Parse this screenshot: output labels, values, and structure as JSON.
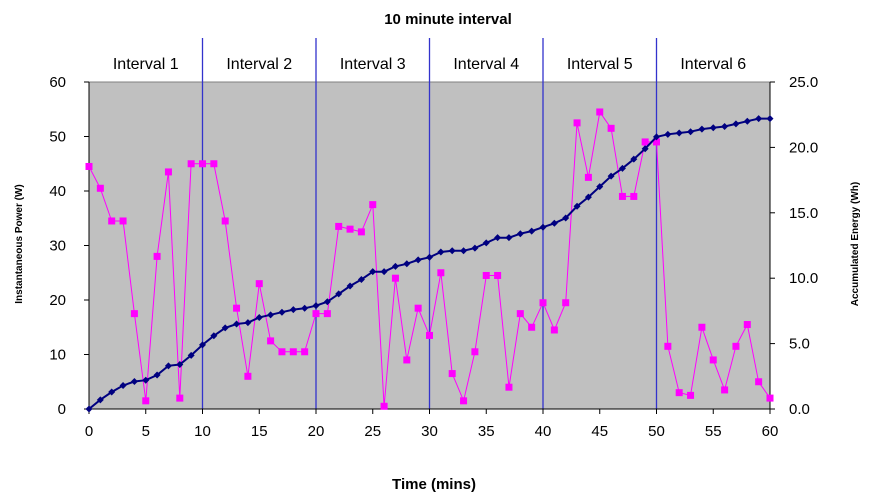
{
  "chart_data": {
    "type": "line",
    "title": "10 minute interval",
    "xlabel": "Time (mins)",
    "ylabel_left": "Instantaneous Power (W)",
    "ylabel_right": "Accumulated Energy (Wh)",
    "xlim": [
      0,
      60
    ],
    "ylim_left": [
      0,
      60
    ],
    "ylim_right": [
      0,
      25
    ],
    "x_ticks": [
      "0",
      "5",
      "10",
      "15",
      "20",
      "25",
      "30",
      "35",
      "40",
      "45",
      "50",
      "55",
      "60"
    ],
    "y_left_ticks": [
      "0",
      "10",
      "20",
      "30",
      "40",
      "50",
      "60"
    ],
    "y_right_ticks": [
      "0.0",
      "5.0",
      "10.0",
      "15.0",
      "20.0",
      "25.0"
    ],
    "grid": false,
    "plot_background": "#c0c0c0",
    "interval_lines": [
      10,
      20,
      30,
      40,
      50
    ],
    "interval_labels": [
      "Interval 1",
      "Interval 2",
      "Interval 3",
      "Interval 4",
      "Interval 5",
      "Interval 6"
    ],
    "series": [
      {
        "axis": "left",
        "color": "#ff00ff",
        "marker": "square",
        "x": [
          0,
          1,
          2,
          3,
          4,
          5,
          6,
          7,
          8,
          9,
          10,
          11,
          12,
          13,
          14,
          15,
          16,
          17,
          18,
          19,
          20,
          21,
          22,
          23,
          24,
          25,
          26,
          27,
          28,
          29,
          30,
          31,
          32,
          33,
          34,
          35,
          36,
          37,
          38,
          39,
          40,
          41,
          42,
          43,
          44,
          45,
          46,
          47,
          48,
          49,
          50,
          51,
          52,
          53,
          54,
          55,
          56,
          57,
          58,
          59,
          60
        ],
        "values": [
          44.5,
          40.5,
          34.5,
          34.5,
          17.5,
          1.5,
          28,
          43.5,
          2,
          45,
          45,
          45,
          34.5,
          18.5,
          6,
          23,
          12.5,
          10.5,
          10.5,
          10.5,
          17.5,
          17.5,
          33.5,
          33,
          32.5,
          37.5,
          0.5,
          24,
          9,
          18.5,
          13.5,
          25,
          6.5,
          1.5,
          10.5,
          24.5,
          24.5,
          4,
          17.5,
          15,
          19.5,
          14.5,
          19.5,
          52.5,
          42.5,
          54.5,
          51.5,
          39,
          39,
          49,
          49,
          11.5,
          3,
          2.5,
          15,
          9,
          3.5,
          11.5,
          15.5,
          5,
          2
        ]
      },
      {
        "axis": "right",
        "color": "#000080",
        "marker": "diamond",
        "x": [
          0,
          1,
          2,
          3,
          4,
          5,
          6,
          7,
          8,
          9,
          10,
          11,
          12,
          13,
          14,
          15,
          16,
          17,
          18,
          19,
          20,
          21,
          22,
          23,
          24,
          25,
          26,
          27,
          28,
          29,
          30,
          31,
          32,
          33,
          34,
          35,
          36,
          37,
          38,
          39,
          40,
          41,
          42,
          43,
          44,
          45,
          46,
          47,
          48,
          49,
          50,
          51,
          52,
          53,
          54,
          55,
          56,
          57,
          58,
          59,
          60
        ],
        "values": [
          0.0,
          0.7,
          1.3,
          1.8,
          2.1,
          2.2,
          2.6,
          3.3,
          3.4,
          4.1,
          4.9,
          5.6,
          6.2,
          6.5,
          6.6,
          7.0,
          7.2,
          7.4,
          7.6,
          7.7,
          7.9,
          8.2,
          8.8,
          9.4,
          9.9,
          10.5,
          10.5,
          10.9,
          11.1,
          11.4,
          11.6,
          12.0,
          12.1,
          12.1,
          12.3,
          12.7,
          13.1,
          13.1,
          13.4,
          13.6,
          13.9,
          14.2,
          14.6,
          15.5,
          16.2,
          17.0,
          17.8,
          18.4,
          19.1,
          19.9,
          20.8,
          21.0,
          21.1,
          21.2,
          21.4,
          21.5,
          21.6,
          21.8,
          22.0,
          22.2,
          22.2
        ]
      }
    ]
  }
}
